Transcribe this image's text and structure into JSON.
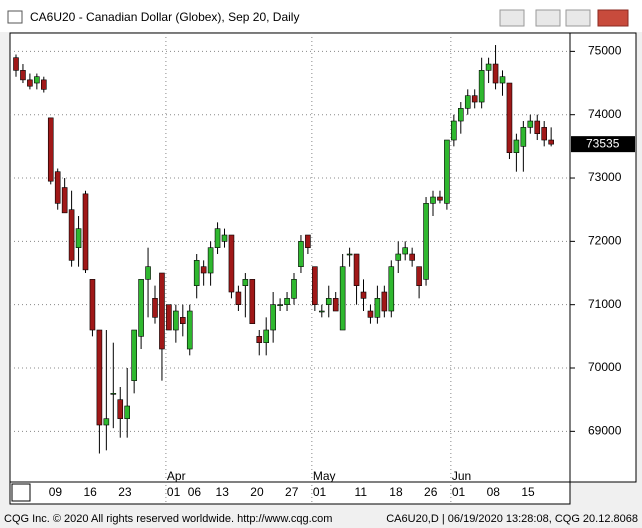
{
  "chart_data": {
    "type": "candlestick",
    "title": "CA6U20 - Canadian Dollar (Globex), Sep 20, Daily",
    "annotations": [
      "CQG Inc. © 2020 All rights reserved worldwide. http://www.cqg.com",
      "CA6U20,D | 06/19/2020 13:28:08, CQG 20.12.8068"
    ],
    "categories": [
      null,
      null,
      null,
      null,
      null,
      "09",
      null,
      null,
      null,
      null,
      "16",
      null,
      null,
      null,
      null,
      "23",
      null,
      null,
      null,
      null,
      null,
      null,
      "01",
      null,
      null,
      "06",
      null,
      null,
      null,
      "13",
      null,
      null,
      null,
      null,
      "20",
      null,
      null,
      null,
      null,
      "27",
      null,
      null,
      null,
      "01",
      null,
      null,
      null,
      null,
      null,
      "11",
      null,
      null,
      null,
      null,
      "18",
      null,
      null,
      null,
      null,
      "26",
      null,
      null,
      null,
      "01",
      null,
      null,
      null,
      null,
      "08",
      null,
      null,
      null,
      null,
      "15",
      null,
      null,
      null,
      null
    ],
    "month_labels": [
      null,
      null,
      null,
      null,
      null,
      null,
      null,
      null,
      null,
      null,
      null,
      null,
      null,
      null,
      null,
      null,
      null,
      null,
      null,
      null,
      null,
      null,
      "Apr",
      null,
      null,
      null,
      null,
      null,
      null,
      null,
      null,
      null,
      null,
      null,
      null,
      null,
      null,
      null,
      null,
      null,
      null,
      null,
      null,
      "May",
      null,
      null,
      null,
      null,
      null,
      null,
      null,
      null,
      null,
      null,
      null,
      null,
      null,
      null,
      null,
      null,
      null,
      null,
      null,
      "Jun",
      null,
      null,
      null,
      null,
      null,
      null,
      null,
      null,
      null,
      null,
      null,
      null,
      null,
      null,
      null
    ],
    "open": [
      74900,
      74700,
      74550,
      74500,
      74550,
      73950,
      73100,
      72850,
      72500,
      71900,
      72750,
      71400,
      70600,
      69100,
      69600,
      69500,
      69200,
      69800,
      70500,
      71400,
      71100,
      71500,
      71000,
      70600,
      70800,
      70300,
      71300,
      71600,
      71500,
      71900,
      72000,
      72100,
      71200,
      71300,
      71400,
      70500,
      70400,
      70600,
      71000,
      71000,
      71100,
      71600,
      72100,
      71600,
      70900,
      71000,
      71100,
      70600,
      71800,
      71800,
      71200,
      70900,
      70800,
      71200,
      70900,
      71700,
      71800,
      71800,
      71600,
      71400,
      72600,
      72700,
      72600,
      73600,
      73900,
      74100,
      74300,
      74200,
      74700,
      74800,
      74500,
      74500,
      73400,
      73500,
      73800,
      73900,
      73800,
      73600
    ],
    "high": [
      74950,
      74800,
      74650,
      74650,
      74600,
      73950,
      73150,
      73000,
      72800,
      72400,
      72800,
      71400,
      70600,
      70600,
      70400,
      69700,
      70000,
      70600,
      71400,
      71900,
      71300,
      71500,
      71000,
      71000,
      71000,
      71000,
      71800,
      71700,
      72000,
      72300,
      72200,
      72100,
      71300,
      71500,
      71400,
      70600,
      70800,
      71200,
      71100,
      71200,
      71500,
      72100,
      72100,
      71600,
      71000,
      71300,
      71200,
      71800,
      71900,
      71800,
      71400,
      71000,
      71300,
      71300,
      71700,
      72000,
      72000,
      71900,
      71600,
      72700,
      72800,
      72800,
      73600,
      74000,
      74200,
      74400,
      74400,
      74900,
      74900,
      75100,
      74700,
      74500,
      73700,
      73900,
      74000,
      74000,
      73900,
      73800
    ],
    "low": [
      74600,
      74500,
      74400,
      74400,
      74350,
      72900,
      72500,
      72450,
      71600,
      71600,
      71500,
      70500,
      68650,
      68700,
      69050,
      68900,
      68900,
      69600,
      70300,
      70800,
      70700,
      69800,
      70600,
      70400,
      70500,
      70200,
      71100,
      71300,
      71300,
      71800,
      71900,
      71100,
      70900,
      70800,
      70700,
      70200,
      70200,
      70400,
      70900,
      70900,
      71000,
      71500,
      71800,
      70900,
      70800,
      70800,
      70900,
      70600,
      71600,
      71000,
      70900,
      70700,
      70700,
      70800,
      70800,
      71500,
      71700,
      71600,
      71100,
      71300,
      72400,
      72600,
      72500,
      73500,
      73700,
      74000,
      74100,
      74100,
      74500,
      74400,
      74300,
      73300,
      73100,
      73100,
      73700,
      73600,
      73500,
      73500
    ],
    "close": [
      74700,
      74550,
      74450,
      74600,
      74400,
      72950,
      72600,
      72450,
      71700,
      72200,
      71550,
      70600,
      69100,
      69200,
      69600,
      69200,
      69400,
      70600,
      71400,
      71600,
      70800,
      70300,
      70600,
      70900,
      70700,
      70900,
      71700,
      71500,
      71900,
      72200,
      72100,
      71200,
      71000,
      71400,
      70700,
      70400,
      70600,
      71000,
      71000,
      71100,
      71400,
      72000,
      71900,
      71000,
      70900,
      71100,
      70900,
      71600,
      71800,
      71300,
      71100,
      70800,
      71100,
      70900,
      71600,
      71800,
      71900,
      71700,
      71300,
      72600,
      72700,
      72650,
      73600,
      73900,
      74100,
      74300,
      74200,
      74700,
      74800,
      74500,
      74600,
      73400,
      73600,
      73800,
      73900,
      73700,
      73600,
      73535
    ],
    "up_color": "#2fb82f",
    "down_color": "#a01818",
    "last_price": 73535,
    "ylim": [
      68200,
      75290
    ],
    "yticks": [
      69000,
      70000,
      71000,
      72000,
      73000,
      74000,
      75000
    ],
    "grid": true
  }
}
